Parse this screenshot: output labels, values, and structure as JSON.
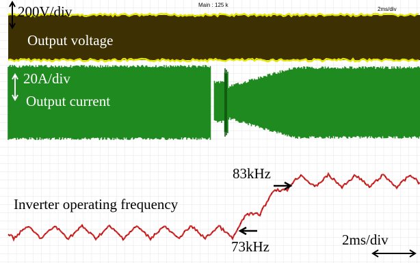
{
  "scope": {
    "header": {
      "center": "Main : 125 k",
      "right": "2ms/div"
    },
    "voltage": {
      "scale": "200V/div",
      "label": "Output voltage"
    },
    "current": {
      "scale": "20A/div",
      "label": "Output current"
    },
    "frequency": {
      "label": "Inverter operating frequency",
      "high": "83kHz",
      "low": "73kHz"
    },
    "timebase": "2ms/div"
  }
}
